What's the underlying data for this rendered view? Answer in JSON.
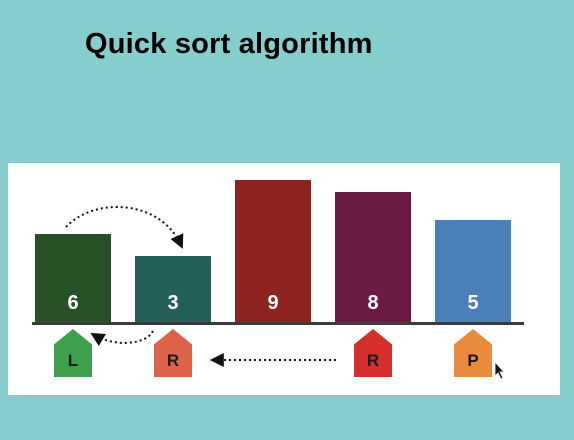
{
  "title": "Quick sort algorithm",
  "colors": {
    "background": "#86cecd",
    "panel": "#ffffff",
    "baseline": "#3b3b3b"
  },
  "bars": [
    {
      "value": "6",
      "height_rel": 6,
      "color": "#275126"
    },
    {
      "value": "3",
      "height_rel": 3,
      "color": "#245f58"
    },
    {
      "value": "9",
      "height_rel": 9,
      "color": "#8c231f"
    },
    {
      "value": "8",
      "height_rel": 8,
      "color": "#6a1a43"
    },
    {
      "value": "5",
      "height_rel": 5,
      "color": "#4b7fb9"
    }
  ],
  "markers": [
    {
      "label": "L",
      "color": "#3fa14b",
      "under_bar": 0
    },
    {
      "label": "R",
      "color": "#de6247",
      "under_bar": 1
    },
    {
      "label": "R",
      "color": "#d42f2b",
      "under_bar": 3
    },
    {
      "label": "P",
      "color": "#ea8a3c",
      "under_bar": 4
    }
  ],
  "icons": {
    "swap_arrows": "dotted-curved-arrow-icon",
    "move_arrow": "dotted-left-arrow-icon",
    "cursor": "mouse-pointer-icon"
  }
}
